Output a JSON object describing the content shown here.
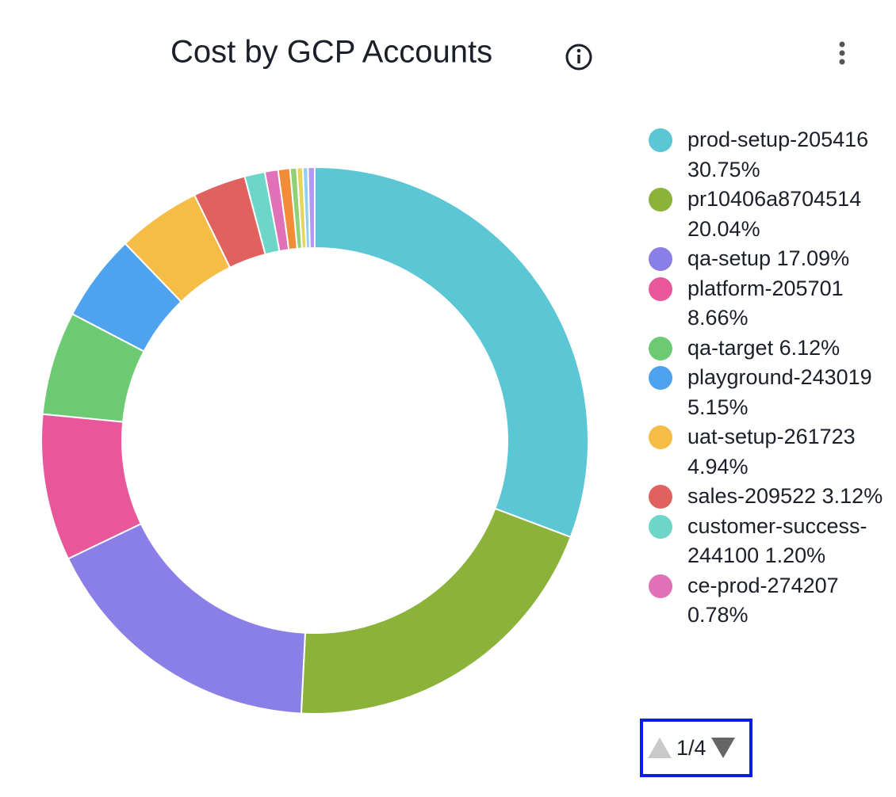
{
  "chart_data": {
    "type": "pie",
    "title": "Cost by GCP Accounts",
    "donut": true,
    "categories": [
      "prod-setup-205416",
      "pr10406a8704514",
      "qa-setup",
      "platform-205701",
      "qa-target",
      "playground-243019",
      "uat-setup-261723",
      "sales-209522",
      "customer-success-244100",
      "ce-prod-274207",
      null,
      null,
      null,
      null,
      null
    ],
    "values": [
      30.75,
      20.04,
      17.09,
      8.66,
      6.12,
      5.15,
      4.94,
      3.12,
      1.2,
      0.78,
      0.7,
      0.4,
      0.35,
      0.3,
      0.4
    ],
    "value_labels": [
      "30.75%",
      "20.04%",
      "17.09%",
      "8.66%",
      "6.12%",
      "5.15%",
      "4.94%",
      "3.12%",
      "1.20%",
      "0.78%",
      null,
      null,
      null,
      null,
      null
    ],
    "colors": [
      "#5bc6d4",
      "#8bb33a",
      "#8a7fe6",
      "#e9579b",
      "#6ccb72",
      "#4fa3ee",
      "#f5bd45",
      "#e0625f",
      "#6dd6c9",
      "#e071b6",
      "#f28c38",
      "#8fd174",
      "#e7d55b",
      "#8fd0f0",
      "#b49af0"
    ],
    "legend_page": "1/4"
  }
}
